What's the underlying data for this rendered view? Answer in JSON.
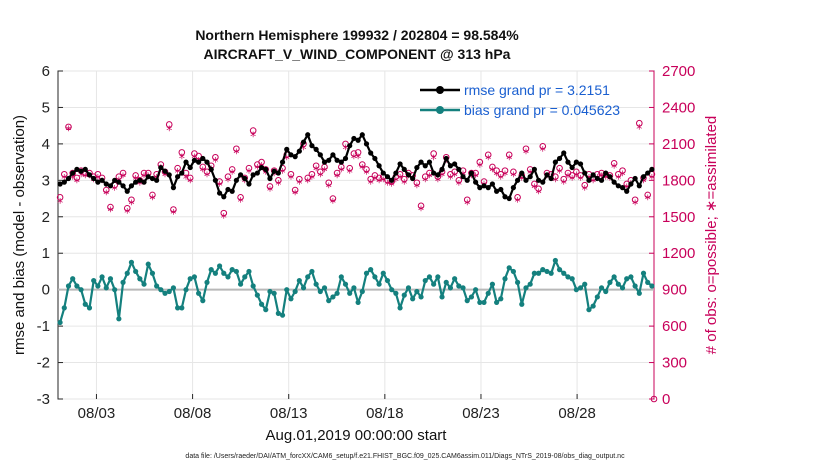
{
  "chart_data": {
    "type": "line",
    "title_line1": "Northern Hemisphere 199932 / 202804 = 98.584%",
    "title_line2": "AIRCRAFT_V_WIND_COMPONENT @ 313 hPa",
    "ylabel": "rmse and bias (model - observation)",
    "ylabel_right": "# of obs: o=possible; ∗=assimilated",
    "xlabel": "Aug.01,2019 00:00:00 start",
    "footnote": "data file: /Users/raeder/DAI/ATM_forcXX/CAM6_setup/f.e21.FHIST_BGC.f09_025.CAM6assim.011/Diags_NTrS_2019-08/obs_diag_output.nc",
    "xlim": [
      1.0,
      32.0
    ],
    "ylim": [
      -3,
      6
    ],
    "ylim_right": [
      0,
      2700
    ],
    "yticks": [
      "-3",
      "-2",
      "-1",
      "0",
      "1",
      "2",
      "3",
      "4",
      "5",
      "6"
    ],
    "yticks_right": [
      "0",
      "300",
      "600",
      "900",
      "1200",
      "1500",
      "1800",
      "2100",
      "2400",
      "2700"
    ],
    "xticks": [
      {
        "x": 3,
        "label": "08/03"
      },
      {
        "x": 8,
        "label": "08/08"
      },
      {
        "x": 13,
        "label": "08/13"
      },
      {
        "x": 18,
        "label": "08/18"
      },
      {
        "x": 23,
        "label": "08/23"
      },
      {
        "x": 28,
        "label": "08/28"
      }
    ],
    "series": [
      {
        "name": "rmse",
        "legend": "rmse grand pr = 3.2151",
        "color": "#000000",
        "values": [
          2.9,
          2.95,
          3.05,
          3.2,
          3.3,
          3.25,
          3.3,
          3.15,
          3.05,
          2.95,
          3.0,
          2.9,
          2.85,
          3.0,
          2.95,
          2.85,
          2.7,
          2.85,
          2.95,
          3.0,
          2.95,
          3.1,
          3.05,
          3.0,
          3.35,
          3.25,
          3.15,
          2.8,
          3.1,
          3.2,
          3.5,
          3.35,
          3.55,
          3.5,
          3.6,
          3.5,
          3.3,
          3.0,
          2.65,
          2.55,
          2.75,
          2.7,
          3.0,
          3.15,
          3.05,
          2.9,
          3.15,
          3.2,
          3.35,
          3.3,
          3.05,
          3.25,
          3.2,
          3.5,
          3.85,
          3.7,
          3.65,
          3.8,
          4.05,
          4.25,
          3.95,
          3.85,
          3.7,
          3.5,
          3.55,
          3.7,
          3.55,
          3.5,
          3.6,
          3.95,
          4.15,
          4.1,
          4.25,
          4.0,
          3.75,
          3.6,
          3.4,
          3.2,
          3.1,
          3.0,
          3.2,
          3.45,
          3.3,
          3.15,
          3.05,
          3.35,
          3.5,
          3.4,
          3.5,
          3.2,
          3.15,
          3.3,
          3.6,
          3.4,
          3.45,
          3.3,
          3.1,
          3.0,
          3.2,
          2.95,
          2.8,
          2.85,
          2.8,
          2.9,
          2.7,
          2.75,
          2.55,
          2.5,
          2.8,
          3.0,
          3.2,
          3.0,
          3.1,
          3.3,
          3.0,
          2.95,
          3.15,
          3.05,
          3.5,
          3.6,
          3.75,
          3.5,
          3.35,
          3.5,
          3.45,
          3.2,
          3.0,
          3.15,
          3.05,
          3.0,
          3.2,
          3.1,
          2.95,
          2.85,
          2.8,
          2.7,
          2.9,
          3.05,
          2.85,
          3.1,
          3.2,
          3.3
        ]
      },
      {
        "name": "bias",
        "legend": "bias grand pr = 0.045623",
        "color": "#14807e",
        "values": [
          -0.9,
          -0.5,
          0.1,
          0.3,
          0.1,
          0.0,
          -0.4,
          -0.5,
          0.25,
          0.1,
          0.35,
          0.05,
          0.3,
          0.0,
          -0.8,
          0.2,
          0.45,
          0.75,
          0.5,
          0.3,
          0.15,
          0.7,
          0.45,
          0.1,
          0.0,
          -0.1,
          -0.05,
          0.05,
          -0.5,
          -0.5,
          0.0,
          0.3,
          0.35,
          -0.1,
          -0.3,
          0.2,
          0.55,
          0.45,
          0.65,
          0.45,
          0.35,
          0.55,
          0.5,
          0.15,
          0.35,
          0.5,
          0.1,
          -0.15,
          -0.4,
          -0.55,
          -0.05,
          -0.1,
          -0.65,
          -0.7,
          0.0,
          -0.25,
          -0.05,
          0.25,
          0.05,
          0.35,
          0.5,
          0.15,
          -0.05,
          0.05,
          -0.3,
          -0.2,
          -0.1,
          0.35,
          0.15,
          -0.1,
          0.05,
          -0.35,
          -0.05,
          0.45,
          0.55,
          0.35,
          0.15,
          0.45,
          0.25,
          0.0,
          -0.1,
          -0.5,
          -0.15,
          0.05,
          -0.25,
          -0.05,
          -0.2,
          0.25,
          0.35,
          0.15,
          0.35,
          -0.2,
          0.2,
          0.05,
          0.3,
          0.1,
          0.05,
          -0.3,
          -0.2,
          0.0,
          -0.35,
          -0.35,
          -0.1,
          0.15,
          -0.35,
          -0.25,
          0.3,
          0.6,
          0.5,
          0.2,
          -0.4,
          0.05,
          0.15,
          0.45,
          0.45,
          0.55,
          0.5,
          0.45,
          0.8,
          0.55,
          0.45,
          0.35,
          0.3,
          0.0,
          0.05,
          0.15,
          -0.55,
          -0.45,
          -0.2,
          0.05,
          -0.05,
          0.2,
          0.35,
          0.15,
          0.05,
          0.3,
          0.35,
          0.1,
          -0.1,
          0.45,
          0.2,
          0.1
        ]
      }
    ],
    "obs_counts": {
      "color": "#c8005a",
      "possible": [
        1660,
        1850,
        2240,
        1860,
        1820,
        1880,
        1860,
        1860,
        1830,
        1850,
        1820,
        1720,
        1580,
        1760,
        1830,
        1860,
        1570,
        1640,
        1840,
        1800,
        1860,
        1860,
        1680,
        1850,
        1930,
        1870,
        2260,
        1560,
        1900,
        2030,
        1860,
        1820,
        2020,
        2000,
        1910,
        1870,
        1920,
        1990,
        1790,
        1530,
        1830,
        1890,
        2060,
        1660,
        1820,
        1900,
        2210,
        1930,
        1950,
        1890,
        1750,
        1880,
        1800,
        1900,
        2010,
        1850,
        1720,
        1810,
        2100,
        1820,
        1850,
        1920,
        1870,
        1910,
        1780,
        1650,
        1860,
        1910,
        2100,
        1900,
        2020,
        2030,
        1930,
        1890,
        1810,
        1840,
        1820,
        1830,
        1800,
        1790,
        1830,
        1850,
        1810,
        1860,
        1840,
        1780,
        1590,
        1830,
        1860,
        2020,
        1830,
        1870,
        1990,
        1850,
        1870,
        1800,
        1880,
        1640,
        1860,
        1860,
        1950,
        1790,
        2010,
        1910,
        1880,
        1850,
        1880,
        2010,
        1870,
        1660,
        1840,
        2060,
        1890,
        1770,
        1730,
        2080,
        1860,
        1850,
        1830,
        1900,
        1810,
        1860,
        1840,
        1870,
        1840,
        1760,
        1850,
        1820,
        1850,
        1860,
        1850,
        1840,
        1940,
        1850,
        1880,
        1770,
        1800,
        1640,
        2270,
        1820,
        1680,
        1850
      ],
      "assimilated": [
        1620,
        1820,
        2220,
        1820,
        1790,
        1840,
        1830,
        1830,
        1800,
        1820,
        1790,
        1690,
        1550,
        1730,
        1800,
        1830,
        1540,
        1610,
        1810,
        1770,
        1830,
        1830,
        1650,
        1820,
        1900,
        1840,
        2220,
        1530,
        1870,
        1990,
        1820,
        1790,
        1990,
        1960,
        1880,
        1840,
        1890,
        1960,
        1760,
        1500,
        1800,
        1860,
        2030,
        1630,
        1790,
        1870,
        2170,
        1900,
        1920,
        1860,
        1720,
        1850,
        1770,
        1870,
        1980,
        1820,
        1690,
        1780,
        2060,
        1790,
        1820,
        1890,
        1840,
        1880,
        1750,
        1620,
        1830,
        1880,
        2060,
        1870,
        1990,
        1990,
        1900,
        1860,
        1780,
        1810,
        1790,
        1800,
        1770,
        1760,
        1800,
        1820,
        1780,
        1830,
        1810,
        1750,
        1560,
        1800,
        1830,
        1980,
        1800,
        1840,
        1960,
        1820,
        1840,
        1770,
        1850,
        1610,
        1830,
        1830,
        1920,
        1760,
        1980,
        1880,
        1850,
        1820,
        1850,
        1980,
        1840,
        1630,
        1810,
        2030,
        1860,
        1740,
        1700,
        2050,
        1830,
        1820,
        1800,
        1870,
        1780,
        1830,
        1810,
        1840,
        1810,
        1730,
        1820,
        1790,
        1820,
        1830,
        1820,
        1810,
        1910,
        1820,
        1850,
        1740,
        1770,
        1610,
        2230,
        1790,
        1650,
        1820
      ]
    }
  }
}
